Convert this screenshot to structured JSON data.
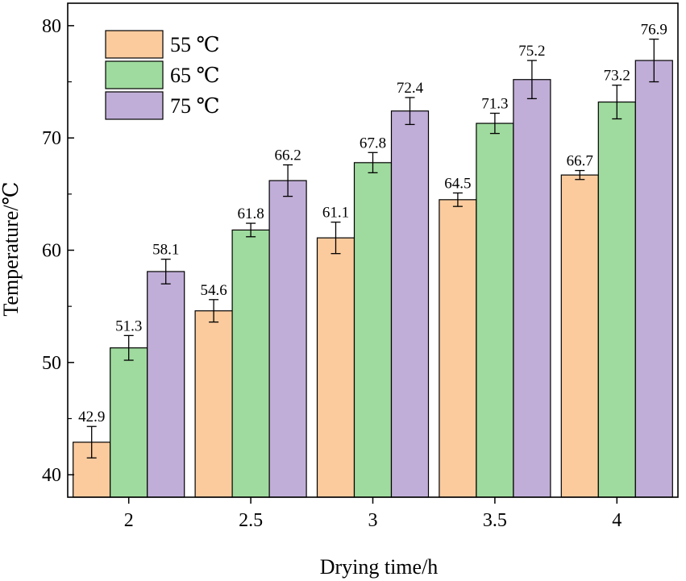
{
  "chart_data": {
    "type": "bar",
    "title": "",
    "xlabel": "Drying time/h",
    "ylabel": "Temperature/℃",
    "categories": [
      "2",
      "2.5",
      "3",
      "3.5",
      "4"
    ],
    "ylim": [
      38,
      82
    ],
    "yticks": [
      40,
      50,
      60,
      70,
      80
    ],
    "legend_position": "top-left",
    "series": [
      {
        "name": "55 ℃",
        "color": "#FBCB9E",
        "values": [
          42.9,
          54.6,
          61.1,
          64.5,
          66.7
        ],
        "labels": [
          "42.9",
          "54.6",
          "61.1",
          "64.5",
          "66.7"
        ],
        "errors": [
          1.4,
          1.0,
          1.4,
          0.6,
          0.4
        ]
      },
      {
        "name": "65 ℃",
        "color": "#9FDB9E",
        "values": [
          51.3,
          61.8,
          67.8,
          71.3,
          73.2
        ],
        "labels": [
          "51.3",
          "61.8",
          "67.8",
          "71.3",
          "73.2"
        ],
        "errors": [
          1.1,
          0.6,
          0.9,
          0.9,
          1.5
        ]
      },
      {
        "name": "75 ℃",
        "color": "#C1AED8",
        "values": [
          58.1,
          66.2,
          72.4,
          75.2,
          76.9
        ],
        "labels": [
          "58.1",
          "66.2",
          "72.4",
          "75.2",
          "76.9"
        ],
        "errors": [
          1.1,
          1.4,
          1.2,
          1.7,
          1.9
        ]
      }
    ]
  }
}
